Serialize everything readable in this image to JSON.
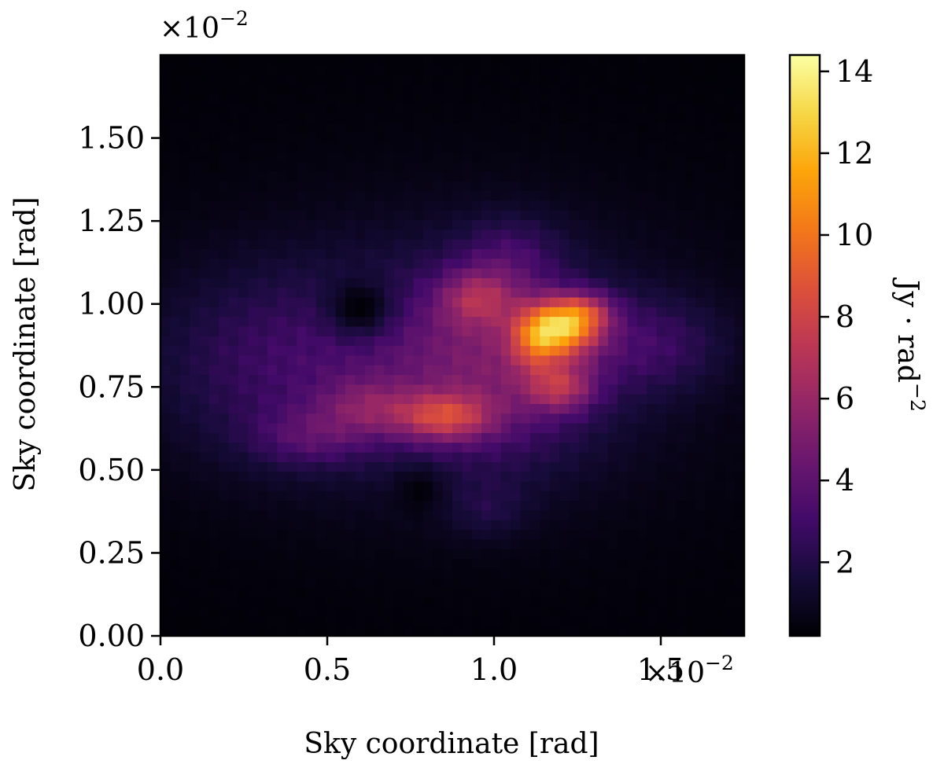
{
  "chart_data": {
    "type": "heatmap",
    "title": "",
    "xlabel": "Sky coordinate [rad]",
    "ylabel": "Sky coordinate [rad]",
    "x_offset_label": "×10",
    "x_offset_exponent": "−2",
    "y_offset_label": "×10",
    "y_offset_exponent": "−2",
    "xlim": [
      0.0,
      1.75
    ],
    "ylim": [
      0.0,
      1.75
    ],
    "scale_factor": 0.01,
    "xticks": [
      {
        "value": 0.0,
        "label": "0.0"
      },
      {
        "value": 0.5,
        "label": "0.5"
      },
      {
        "value": 1.0,
        "label": "1.0"
      },
      {
        "value": 1.5,
        "label": "1.5"
      }
    ],
    "yticks": [
      {
        "value": 0.0,
        "label": "0.00"
      },
      {
        "value": 0.25,
        "label": "0.25"
      },
      {
        "value": 0.5,
        "label": "0.50"
      },
      {
        "value": 0.75,
        "label": "0.75"
      },
      {
        "value": 1.0,
        "label": "1.00"
      },
      {
        "value": 1.25,
        "label": "1.25"
      },
      {
        "value": 1.5,
        "label": "1.50"
      }
    ],
    "colormap": "inferno",
    "colorbar": {
      "label_main": "Jy · rad",
      "label_exponent": "−2",
      "min": 0.2,
      "max": 14.4,
      "ticks": [
        {
          "value": 2,
          "label": "2"
        },
        {
          "value": 4,
          "label": "4"
        },
        {
          "value": 6,
          "label": "6"
        },
        {
          "value": 8,
          "label": "8"
        },
        {
          "value": 10,
          "label": "10"
        },
        {
          "value": 12,
          "label": "12"
        },
        {
          "value": 14,
          "label": "14"
        }
      ]
    },
    "grid_size": [
      60,
      60
    ],
    "background_value": 0.3,
    "components": [
      {
        "x": 1.2,
        "y": 0.93,
        "sx": 0.08,
        "sy": 0.06,
        "amp": 9.0
      },
      {
        "x": 1.12,
        "y": 0.88,
        "sx": 0.05,
        "sy": 0.06,
        "amp": 3.0
      },
      {
        "x": 1.2,
        "y": 0.75,
        "sx": 0.07,
        "sy": 0.05,
        "amp": 4.0
      },
      {
        "x": 1.28,
        "y": 0.98,
        "sx": 0.06,
        "sy": 0.04,
        "amp": 3.0
      },
      {
        "x": 0.85,
        "y": 0.66,
        "sx": 0.1,
        "sy": 0.05,
        "amp": 5.0
      },
      {
        "x": 0.62,
        "y": 0.69,
        "sx": 0.1,
        "sy": 0.06,
        "amp": 2.5
      },
      {
        "x": 0.95,
        "y": 1.02,
        "sx": 0.08,
        "sy": 0.06,
        "amp": 3.5
      },
      {
        "x": 1.0,
        "y": 0.82,
        "sx": 0.22,
        "sy": 0.2,
        "amp": 3.5
      },
      {
        "x": 0.45,
        "y": 0.6,
        "sx": 0.12,
        "sy": 0.06,
        "amp": 2.0
      },
      {
        "x": 0.4,
        "y": 0.82,
        "sx": 0.3,
        "sy": 0.2,
        "amp": 2.0
      },
      {
        "x": 1.48,
        "y": 0.88,
        "sx": 0.15,
        "sy": 0.1,
        "amp": 1.8
      },
      {
        "x": 0.9,
        "y": 0.85,
        "sx": 0.6,
        "sy": 0.35,
        "amp": 1.0
      },
      {
        "x": 0.98,
        "y": 0.38,
        "sx": 0.08,
        "sy": 0.06,
        "amp": 1.0
      },
      {
        "x": 1.05,
        "y": 1.15,
        "sx": 0.1,
        "sy": 0.08,
        "amp": 1.5
      }
    ],
    "voids": [
      {
        "x": 0.6,
        "y": 0.98,
        "sx": 0.07,
        "sy": 0.06,
        "amp": 2.5
      },
      {
        "x": 0.78,
        "y": 0.45,
        "sx": 0.05,
        "sy": 0.05,
        "amp": 1.0
      }
    ]
  }
}
